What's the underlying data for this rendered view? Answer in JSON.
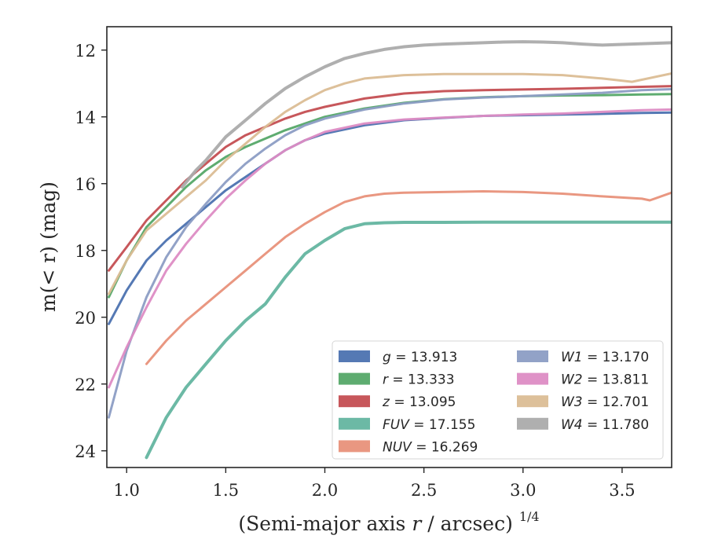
{
  "chart_data": {
    "type": "line",
    "xlabel": "(Semi-major axis",
    "xlabel_var": "r",
    "xlabel_unit": "/ arcsec)",
    "xlabel_power": "1/4",
    "ylabel": "m(< r) (mag)",
    "xlim": [
      0.9,
      3.75
    ],
    "ylim": [
      24.5,
      11.3
    ],
    "y_inverted": true,
    "xticks": [
      1.0,
      1.5,
      2.0,
      2.5,
      3.0,
      3.5
    ],
    "xtick_labels": [
      "1.0",
      "1.5",
      "2.0",
      "2.5",
      "3.0",
      "3.5"
    ],
    "yticks": [
      12,
      14,
      16,
      18,
      20,
      22,
      24
    ],
    "ytick_labels": [
      "12",
      "14",
      "16",
      "18",
      "20",
      "22",
      "24"
    ],
    "grid": false,
    "legend_placement": "lower-right",
    "series": [
      {
        "name": "g",
        "label": "g = 13.913",
        "color": "#4c72b0",
        "x": [
          0.91,
          1.0,
          1.1,
          1.2,
          1.3,
          1.4,
          1.5,
          1.6,
          1.7,
          1.8,
          1.9,
          2.0,
          2.2,
          2.4,
          2.6,
          2.8,
          3.0,
          3.2,
          3.4,
          3.6,
          3.75
        ],
        "y": [
          20.2,
          19.2,
          18.3,
          17.7,
          17.2,
          16.7,
          16.2,
          15.8,
          15.4,
          15.0,
          14.7,
          14.5,
          14.25,
          14.1,
          14.03,
          13.97,
          13.95,
          13.93,
          13.91,
          13.88,
          13.87
        ]
      },
      {
        "name": "r",
        "label": "r = 13.333",
        "color": "#55a868",
        "x": [
          0.91,
          1.0,
          1.1,
          1.2,
          1.3,
          1.4,
          1.5,
          1.6,
          1.7,
          1.8,
          1.9,
          2.0,
          2.2,
          2.4,
          2.6,
          2.8,
          3.0,
          3.2,
          3.4,
          3.6,
          3.75
        ],
        "y": [
          19.4,
          18.3,
          17.3,
          16.7,
          16.1,
          15.6,
          15.2,
          14.9,
          14.65,
          14.4,
          14.2,
          14.0,
          13.75,
          13.58,
          13.47,
          13.41,
          13.38,
          13.36,
          13.35,
          13.33,
          13.32
        ]
      },
      {
        "name": "z",
        "label": "z = 13.095",
        "color": "#c44e52",
        "x": [
          0.91,
          1.0,
          1.1,
          1.2,
          1.3,
          1.4,
          1.5,
          1.6,
          1.7,
          1.8,
          1.9,
          2.0,
          2.2,
          2.4,
          2.6,
          2.8,
          3.0,
          3.2,
          3.4,
          3.6,
          3.75
        ],
        "y": [
          18.6,
          17.9,
          17.1,
          16.5,
          15.9,
          15.4,
          14.9,
          14.55,
          14.3,
          14.05,
          13.85,
          13.7,
          13.45,
          13.3,
          13.23,
          13.2,
          13.18,
          13.16,
          13.13,
          13.1,
          13.08
        ]
      },
      {
        "name": "FUV",
        "label": "FUV = 17.155",
        "color": "#64b5a0",
        "x": [
          1.1,
          1.2,
          1.3,
          1.4,
          1.5,
          1.6,
          1.7,
          1.8,
          1.9,
          2.0,
          2.1,
          2.2,
          2.3,
          2.4,
          2.5,
          2.6,
          2.8,
          3.0,
          3.2,
          3.4,
          3.6,
          3.75
        ],
        "y": [
          24.2,
          23.0,
          22.1,
          21.4,
          20.7,
          20.1,
          19.6,
          18.8,
          18.1,
          17.7,
          17.35,
          17.2,
          17.17,
          17.16,
          17.16,
          17.16,
          17.155,
          17.155,
          17.155,
          17.155,
          17.155,
          17.155
        ]
      },
      {
        "name": "NUV",
        "label": "NUV = 16.269",
        "color": "#e8917a",
        "x": [
          1.1,
          1.2,
          1.3,
          1.4,
          1.5,
          1.6,
          1.7,
          1.8,
          1.9,
          2.0,
          2.1,
          2.2,
          2.3,
          2.4,
          2.6,
          2.8,
          3.0,
          3.2,
          3.4,
          3.6,
          3.64,
          3.75
        ],
        "y": [
          21.4,
          20.7,
          20.1,
          19.6,
          19.1,
          18.6,
          18.1,
          17.6,
          17.2,
          16.85,
          16.55,
          16.38,
          16.3,
          16.27,
          16.25,
          16.23,
          16.25,
          16.3,
          16.38,
          16.45,
          16.5,
          16.27
        ]
      },
      {
        "name": "W1",
        "label": "W1 = 13.170",
        "color": "#8c9dc4",
        "x": [
          0.91,
          1.0,
          1.1,
          1.2,
          1.3,
          1.4,
          1.5,
          1.6,
          1.7,
          1.8,
          1.9,
          2.0,
          2.2,
          2.4,
          2.6,
          2.8,
          3.0,
          3.2,
          3.4,
          3.6,
          3.75
        ],
        "y": [
          23.0,
          21.0,
          19.4,
          18.2,
          17.3,
          16.6,
          15.95,
          15.4,
          14.95,
          14.55,
          14.25,
          14.05,
          13.78,
          13.6,
          13.48,
          13.42,
          13.38,
          13.33,
          13.28,
          13.2,
          13.17
        ]
      },
      {
        "name": "W2",
        "label": "W2 = 13.811",
        "color": "#dd8cc4",
        "x": [
          0.91,
          1.0,
          1.1,
          1.2,
          1.3,
          1.4,
          1.5,
          1.6,
          1.7,
          1.8,
          1.9,
          2.0,
          2.2,
          2.4,
          2.6,
          2.8,
          3.0,
          3.2,
          3.4,
          3.6,
          3.75
        ],
        "y": [
          22.1,
          20.9,
          19.7,
          18.6,
          17.8,
          17.1,
          16.45,
          15.9,
          15.4,
          15.0,
          14.7,
          14.45,
          14.2,
          14.08,
          14.02,
          13.97,
          13.93,
          13.9,
          13.85,
          13.8,
          13.78
        ]
      },
      {
        "name": "W3",
        "label": "W3 = 12.701",
        "color": "#dbbd95",
        "x": [
          0.91,
          1.0,
          1.1,
          1.2,
          1.3,
          1.4,
          1.5,
          1.6,
          1.7,
          1.8,
          1.9,
          2.0,
          2.1,
          2.2,
          2.4,
          2.6,
          2.8,
          3.0,
          3.2,
          3.4,
          3.55,
          3.75
        ],
        "y": [
          19.3,
          18.3,
          17.4,
          16.9,
          16.4,
          15.9,
          15.3,
          14.8,
          14.3,
          13.85,
          13.5,
          13.2,
          13.0,
          12.85,
          12.75,
          12.72,
          12.72,
          12.72,
          12.75,
          12.85,
          12.95,
          12.7
        ]
      },
      {
        "name": "W4",
        "label": "W4 = 11.780",
        "color": "#ababab",
        "x": [
          1.28,
          1.35,
          1.4,
          1.5,
          1.6,
          1.7,
          1.8,
          1.9,
          2.0,
          2.1,
          2.2,
          2.3,
          2.4,
          2.5,
          2.6,
          2.7,
          2.8,
          2.9,
          3.0,
          3.1,
          3.2,
          3.3,
          3.4,
          3.75
        ],
        "y": [
          16.1,
          15.6,
          15.3,
          14.6,
          14.1,
          13.6,
          13.15,
          12.8,
          12.5,
          12.25,
          12.1,
          11.98,
          11.9,
          11.85,
          11.82,
          11.8,
          11.78,
          11.76,
          11.75,
          11.76,
          11.78,
          11.82,
          11.85,
          11.78
        ]
      }
    ],
    "legend_columns": [
      [
        "g",
        "r",
        "z",
        "FUV",
        "NUV"
      ],
      [
        "W1",
        "W2",
        "W3",
        "W4"
      ]
    ],
    "legend_labels": [
      {
        "symbol": "g",
        "value": "13.913"
      },
      {
        "symbol": "r",
        "value": "13.333"
      },
      {
        "symbol": "z",
        "value": "13.095"
      },
      {
        "symbol": "FUV",
        "value": "17.155"
      },
      {
        "symbol": "NUV",
        "value": "16.269"
      },
      {
        "symbol": "W1",
        "value": "13.170"
      },
      {
        "symbol": "W2",
        "value": "13.811"
      },
      {
        "symbol": "W3",
        "value": "12.701"
      },
      {
        "symbol": "W4",
        "value": "11.780"
      }
    ]
  }
}
